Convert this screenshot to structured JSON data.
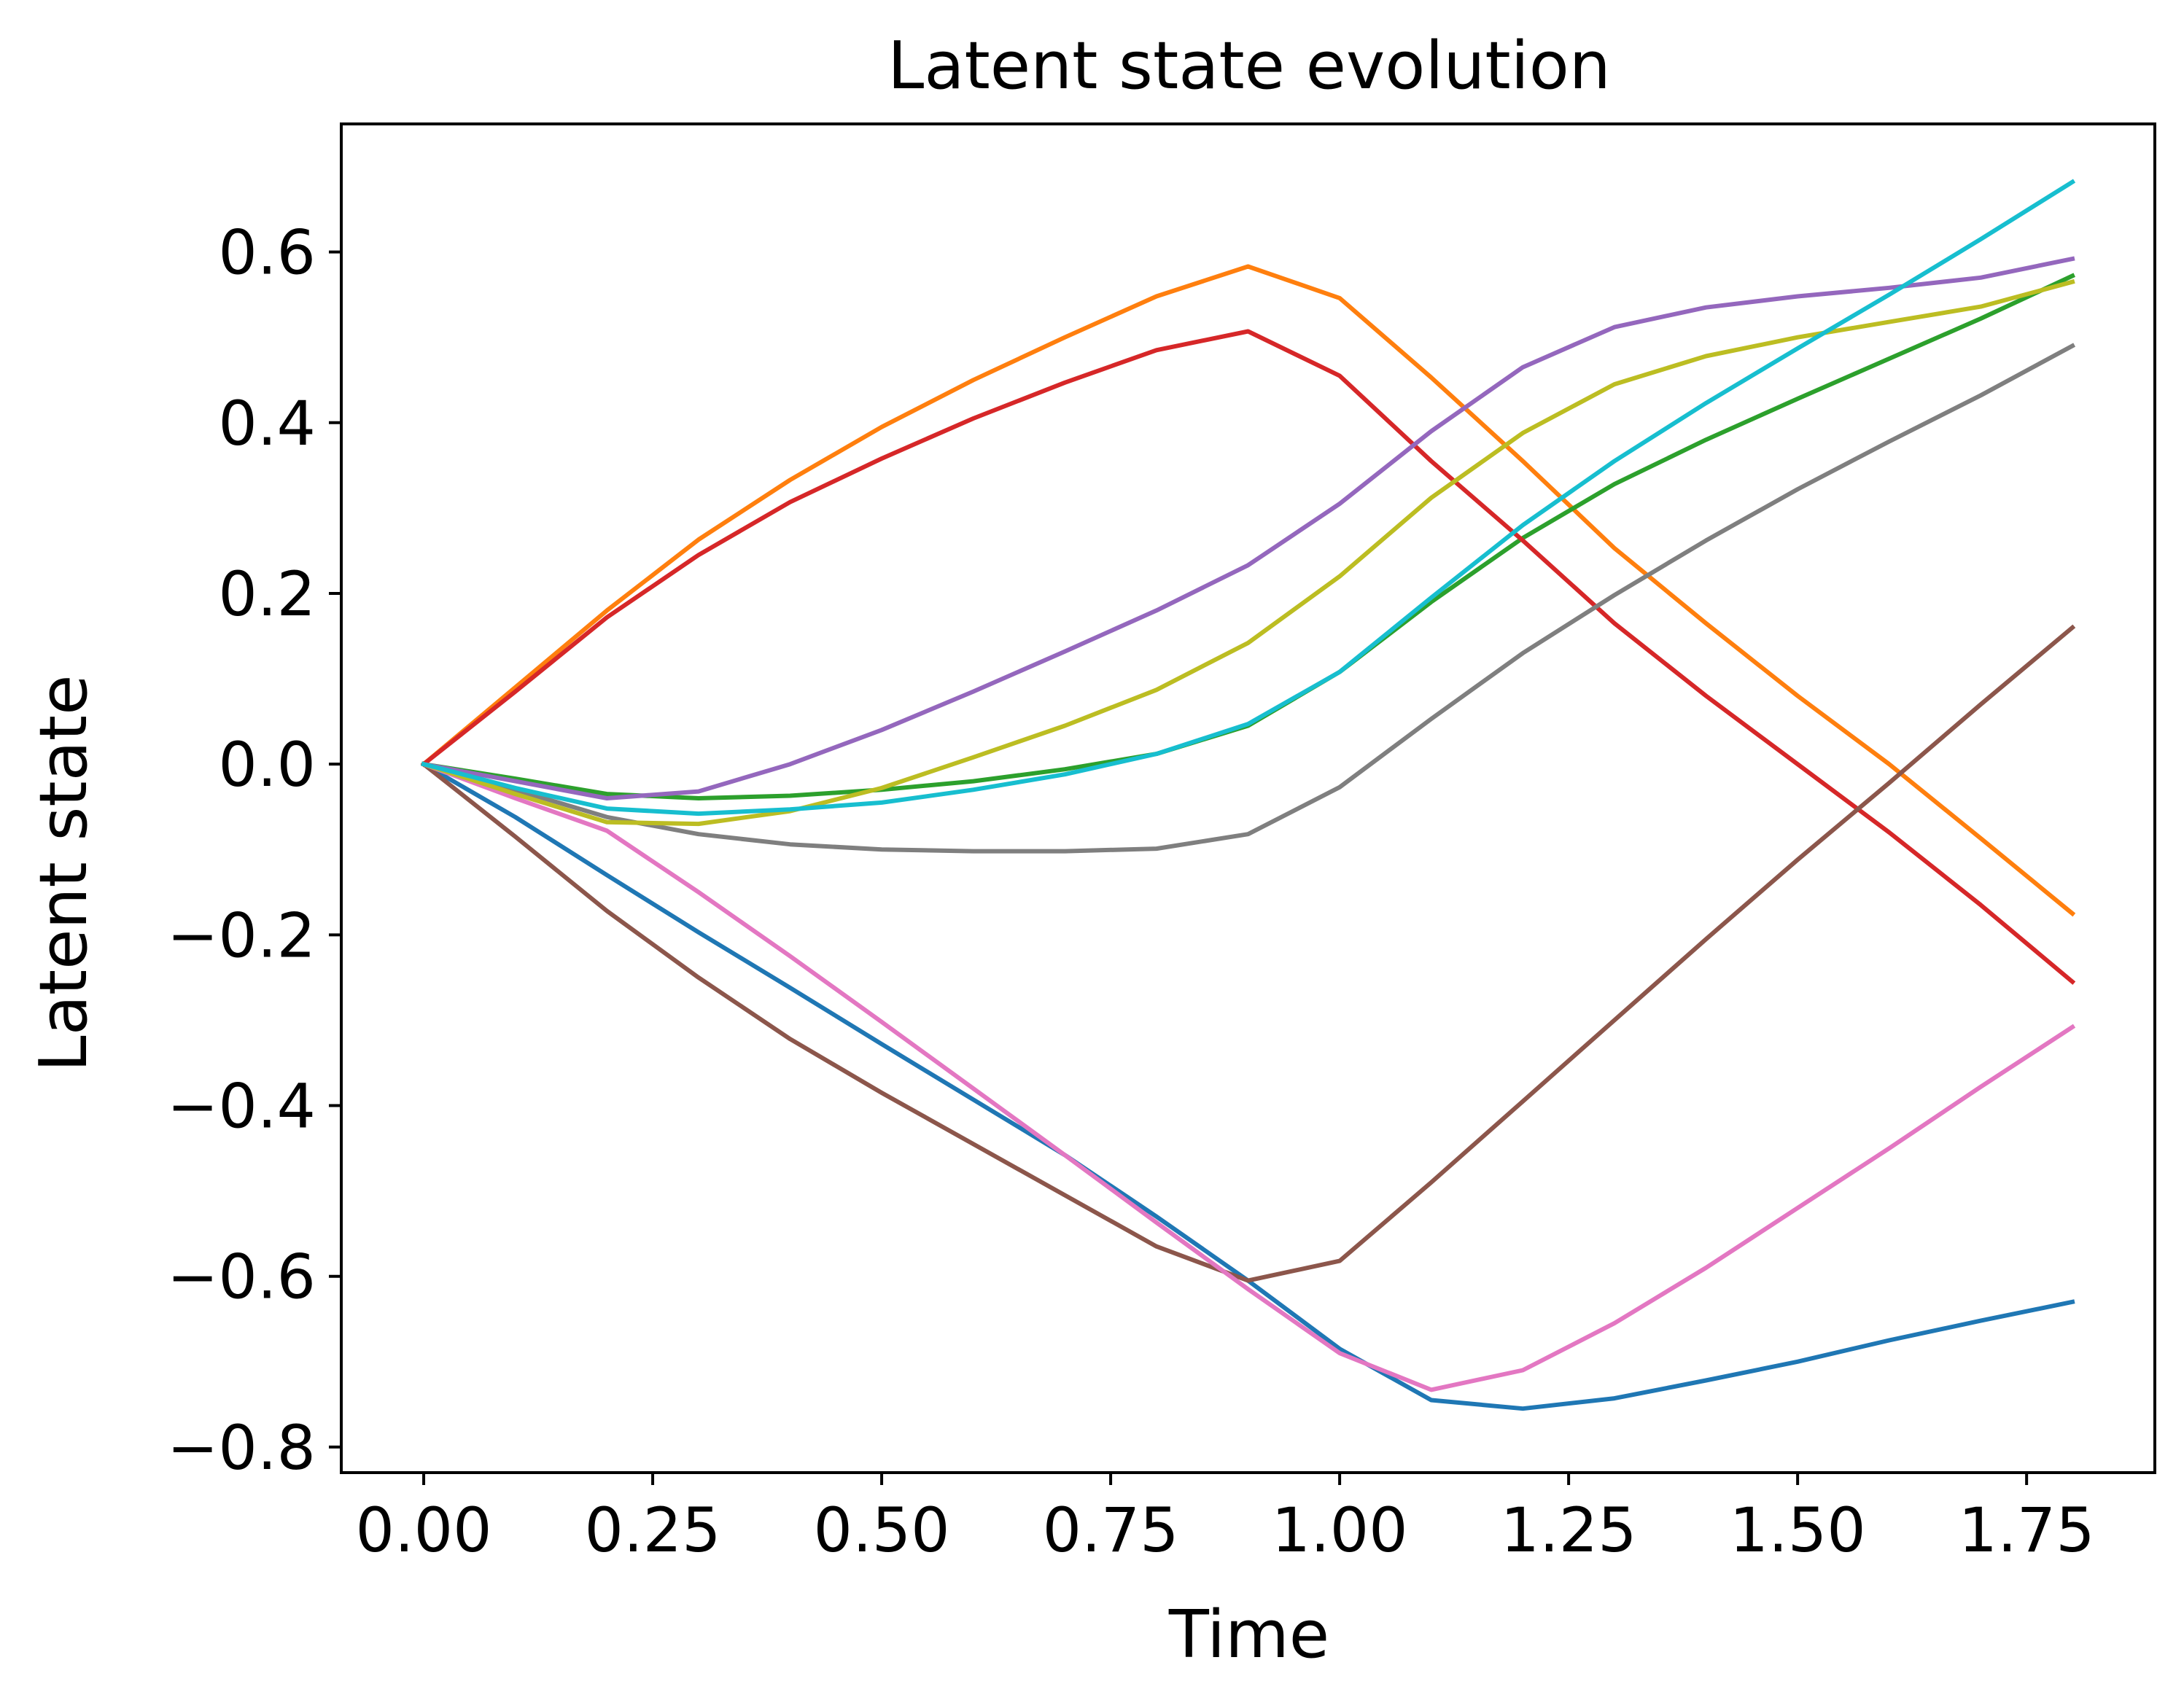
{
  "chart_data": {
    "type": "line",
    "title": "Latent state evolution",
    "xlabel": "Time",
    "ylabel": "Latent state",
    "xlim": [
      -0.09,
      1.89
    ],
    "ylim": [
      -0.83,
      0.75
    ],
    "xticks": [
      0.0,
      0.25,
      0.5,
      0.75,
      1.0,
      1.25,
      1.5,
      1.75
    ],
    "xtick_labels": [
      "0.00",
      "0.25",
      "0.50",
      "0.75",
      "1.00",
      "1.25",
      "1.50",
      "1.75"
    ],
    "yticks": [
      -0.8,
      -0.6,
      -0.4,
      -0.2,
      0.0,
      0.2,
      0.4,
      0.6
    ],
    "ytick_labels": [
      "−0.8",
      "−0.6",
      "−0.4",
      "−0.2",
      "0.0",
      "0.2",
      "0.4",
      "0.6"
    ],
    "grid": false,
    "x": [
      0.0,
      0.1,
      0.2,
      0.3,
      0.4,
      0.5,
      0.6,
      0.7,
      0.8,
      0.9,
      1.0,
      1.1,
      1.2,
      1.3,
      1.4,
      1.5,
      1.6,
      1.7,
      1.8
    ],
    "series": [
      {
        "color": "#1f77b4",
        "values": [
          0.0,
          -0.062,
          -0.13,
          -0.197,
          -0.262,
          -0.328,
          -0.393,
          -0.458,
          -0.53,
          -0.605,
          -0.685,
          -0.745,
          -0.755,
          -0.743,
          -0.722,
          -0.7,
          -0.675,
          -0.652,
          -0.63
        ]
      },
      {
        "color": "#ff7f0e",
        "values": [
          0.0,
          0.09,
          0.18,
          0.263,
          0.333,
          0.395,
          0.45,
          0.5,
          0.548,
          0.583,
          0.546,
          0.453,
          0.355,
          0.253,
          0.165,
          0.08,
          0.0,
          -0.087,
          -0.175
        ]
      },
      {
        "color": "#2ca02c",
        "values": [
          0.0,
          -0.017,
          -0.035,
          -0.04,
          -0.037,
          -0.03,
          -0.02,
          -0.006,
          0.012,
          0.045,
          0.108,
          0.19,
          0.265,
          0.328,
          0.38,
          0.428,
          0.475,
          0.522,
          0.572
        ]
      },
      {
        "color": "#d62728",
        "values": [
          0.0,
          0.085,
          0.172,
          0.245,
          0.307,
          0.358,
          0.405,
          0.447,
          0.485,
          0.507,
          0.455,
          0.355,
          0.262,
          0.165,
          0.08,
          0.0,
          -0.08,
          -0.165,
          -0.255
        ]
      },
      {
        "color": "#9467bd",
        "values": [
          0.0,
          -0.02,
          -0.04,
          -0.032,
          0.0,
          0.04,
          0.085,
          0.132,
          0.18,
          0.233,
          0.305,
          0.39,
          0.465,
          0.512,
          0.535,
          0.548,
          0.558,
          0.57,
          0.592
        ]
      },
      {
        "color": "#8c564b",
        "values": [
          0.0,
          -0.085,
          -0.172,
          -0.25,
          -0.322,
          -0.385,
          -0.445,
          -0.505,
          -0.565,
          -0.605,
          -0.582,
          -0.49,
          -0.395,
          -0.3,
          -0.205,
          -0.112,
          -0.022,
          0.07,
          0.16
        ]
      },
      {
        "color": "#e377c2",
        "values": [
          0.0,
          -0.04,
          -0.078,
          -0.15,
          -0.225,
          -0.302,
          -0.38,
          -0.458,
          -0.537,
          -0.615,
          -0.69,
          -0.733,
          -0.71,
          -0.655,
          -0.59,
          -0.52,
          -0.45,
          -0.378,
          -0.308
        ]
      },
      {
        "color": "#7f7f7f",
        "values": [
          0.0,
          -0.03,
          -0.062,
          -0.082,
          -0.094,
          -0.1,
          -0.102,
          -0.102,
          -0.099,
          -0.082,
          -0.027,
          0.053,
          0.13,
          0.198,
          0.262,
          0.322,
          0.378,
          0.432,
          0.49
        ]
      },
      {
        "color": "#bcbd22",
        "values": [
          0.0,
          -0.035,
          -0.068,
          -0.07,
          -0.055,
          -0.028,
          0.008,
          0.045,
          0.087,
          0.142,
          0.22,
          0.312,
          0.388,
          0.445,
          0.478,
          0.5,
          0.518,
          0.536,
          0.565
        ]
      },
      {
        "color": "#17becf",
        "values": [
          0.0,
          -0.028,
          -0.052,
          -0.058,
          -0.053,
          -0.045,
          -0.03,
          -0.012,
          0.012,
          0.047,
          0.108,
          0.195,
          0.28,
          0.355,
          0.423,
          0.487,
          0.55,
          0.615,
          0.682
        ]
      }
    ]
  }
}
